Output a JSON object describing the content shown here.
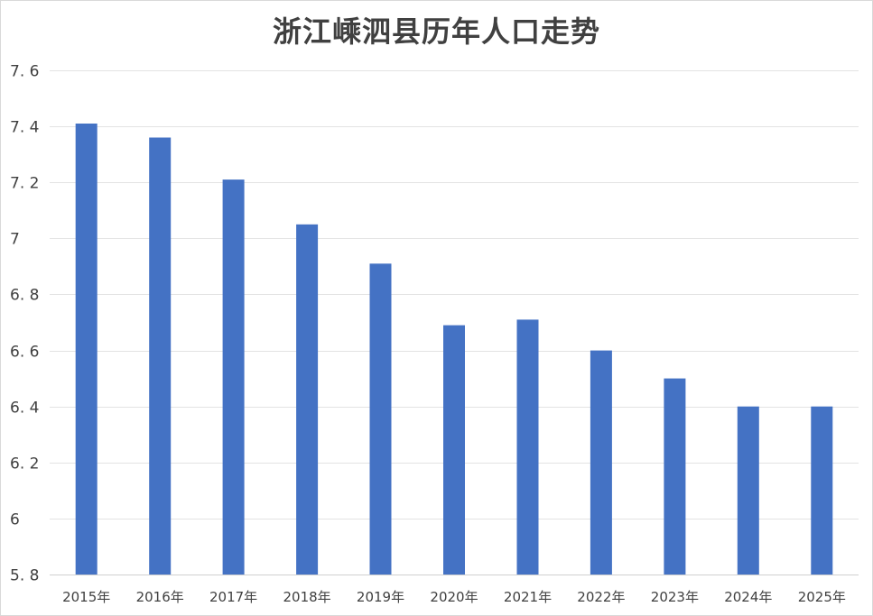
{
  "chart_data": {
    "type": "bar",
    "title": "浙江嵊泗县历年人口走势",
    "categories": [
      "2015年",
      "2016年",
      "2017年",
      "2018年",
      "2019年",
      "2020年",
      "2021年",
      "2022年",
      "2023年",
      "2024年",
      "2025年"
    ],
    "series": [
      {
        "values": [
          7.41,
          7.36,
          7.21,
          7.05,
          6.91,
          6.69,
          6.71,
          6.6,
          6.5,
          6.4,
          6.4
        ],
        "color": "#4472c4"
      }
    ],
    "ylim": [
      5.8,
      7.6
    ],
    "y_ticks": [
      "5. 8",
      "6",
      "6. 2",
      "6. 4",
      "6. 6",
      "6. 8",
      "7",
      "7. 2",
      "7. 4",
      "7. 6"
    ],
    "y_tick_values": [
      5.8,
      6.0,
      6.2,
      6.4,
      6.6,
      6.8,
      7.0,
      7.2,
      7.4,
      7.6
    ],
    "grid": true,
    "legend": "none"
  }
}
